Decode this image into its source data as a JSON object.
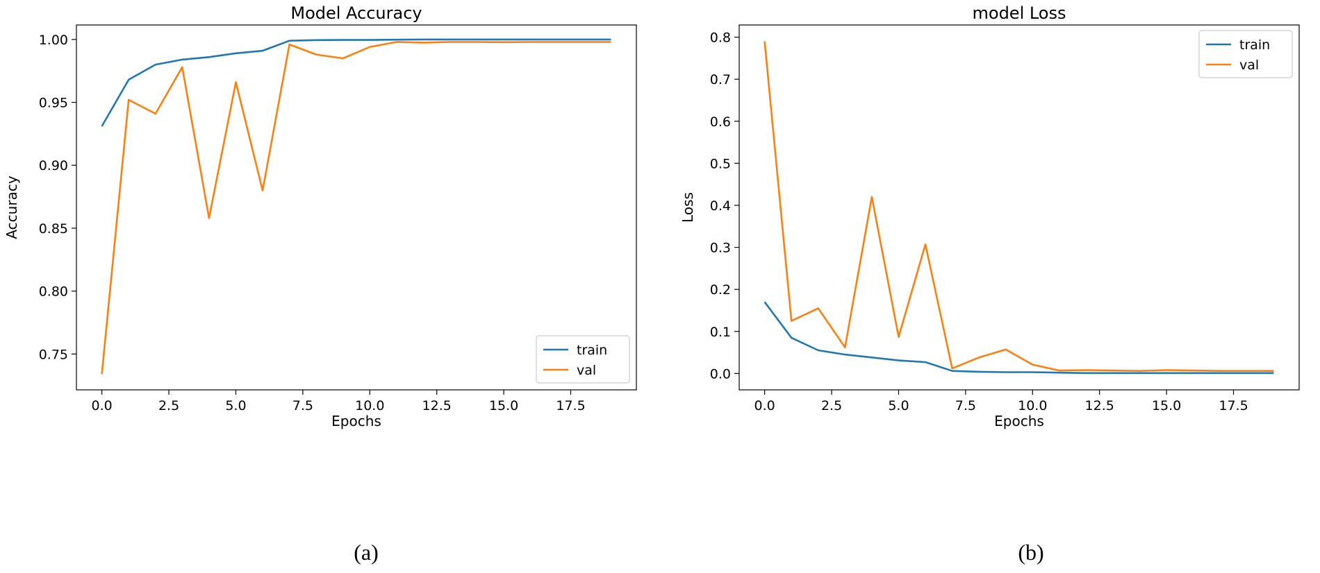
{
  "chart_data": [
    {
      "type": "line",
      "panel_label": "(a)",
      "title": "Model Accuracy",
      "xlabel": "Epochs",
      "ylabel": "Accuracy",
      "xlim": [
        -0.95,
        19.95
      ],
      "ylim": [
        0.7215,
        1.0115
      ],
      "xticks": [
        0,
        2.5,
        5,
        7.5,
        10,
        12.5,
        15,
        17.5
      ],
      "xtick_labels": [
        "0.0",
        "2.5",
        "5.0",
        "7.5",
        "10.0",
        "12.5",
        "15.0",
        "17.5"
      ],
      "yticks": [
        0.75,
        0.8,
        0.85,
        0.9,
        0.95,
        1.0
      ],
      "ytick_labels": [
        "0.75",
        "0.80",
        "0.85",
        "0.90",
        "0.95",
        "1.00"
      ],
      "legend_position": "bottom-right",
      "x": [
        0,
        1,
        2,
        3,
        4,
        5,
        6,
        7,
        8,
        9,
        10,
        11,
        12,
        13,
        14,
        15,
        16,
        17,
        18,
        19
      ],
      "series": [
        {
          "name": "train",
          "color": "#1f77b4",
          "values": [
            0.931,
            0.968,
            0.98,
            0.984,
            0.986,
            0.989,
            0.991,
            0.999,
            0.9995,
            0.9996,
            0.9996,
            0.9998,
            1.0,
            1.0,
            1.0,
            1.0,
            1.0,
            1.0,
            1.0,
            1.0
          ]
        },
        {
          "name": "val",
          "color": "#ff7f0e",
          "values": [
            0.734,
            0.952,
            0.941,
            0.978,
            0.858,
            0.966,
            0.88,
            0.996,
            0.988,
            0.985,
            0.994,
            0.998,
            0.9975,
            0.998,
            0.998,
            0.9978,
            0.998,
            0.998,
            0.998,
            0.998
          ]
        }
      ]
    },
    {
      "type": "line",
      "panel_label": "(b)",
      "title": "model Loss",
      "xlabel": "Epochs",
      "ylabel": "Loss",
      "xlim": [
        -0.95,
        19.95
      ],
      "ylim": [
        -0.039,
        0.829
      ],
      "xticks": [
        0,
        2.5,
        5,
        7.5,
        10,
        12.5,
        15,
        17.5
      ],
      "xtick_labels": [
        "0.0",
        "2.5",
        "5.0",
        "7.5",
        "10.0",
        "12.5",
        "15.0",
        "17.5"
      ],
      "yticks": [
        0.0,
        0.1,
        0.2,
        0.3,
        0.4,
        0.5,
        0.6,
        0.7,
        0.8
      ],
      "ytick_labels": [
        "0.0",
        "0.1",
        "0.2",
        "0.3",
        "0.4",
        "0.5",
        "0.6",
        "0.7",
        "0.8"
      ],
      "legend_position": "top-right",
      "x": [
        0,
        1,
        2,
        3,
        4,
        5,
        6,
        7,
        8,
        9,
        10,
        11,
        12,
        13,
        14,
        15,
        16,
        17,
        18,
        19
      ],
      "series": [
        {
          "name": "train",
          "color": "#1f77b4",
          "values": [
            0.17,
            0.085,
            0.055,
            0.045,
            0.038,
            0.031,
            0.027,
            0.006,
            0.004,
            0.003,
            0.003,
            0.002,
            0.001,
            0.001,
            0.001,
            0.001,
            0.001,
            0.001,
            0.001,
            0.001
          ]
        },
        {
          "name": "val",
          "color": "#ff7f0e",
          "values": [
            0.79,
            0.125,
            0.155,
            0.062,
            0.42,
            0.087,
            0.307,
            0.012,
            0.038,
            0.057,
            0.021,
            0.007,
            0.008,
            0.007,
            0.006,
            0.008,
            0.007,
            0.006,
            0.006,
            0.006
          ]
        }
      ]
    }
  ]
}
